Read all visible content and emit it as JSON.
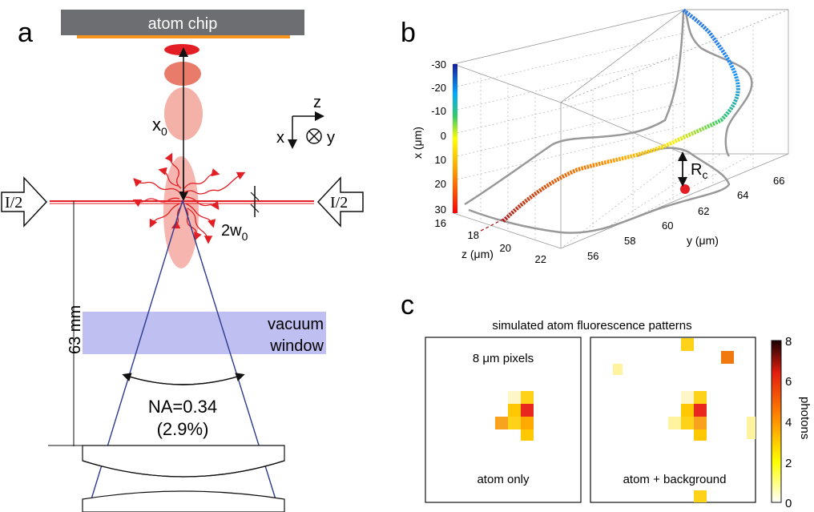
{
  "panel_a": {
    "letter": "a",
    "atom_chip": "atom chip",
    "x0": "x",
    "x0_sub": "0",
    "axis_z": "z",
    "axis_x": "x",
    "axis_y": "y",
    "beam_left": "I/2",
    "beam_right": "I/2",
    "waist": "2w",
    "waist_sub": "0",
    "distance": "63 mm",
    "window_line1": "vacuum",
    "window_line2": "window",
    "na": "NA=0.34",
    "na_pct": "(2.9%)",
    "colors": {
      "chip": "#6d6e71",
      "chip_coating": "#f7941d",
      "atom_cloud": "#f4a9a1",
      "laser": "#e31e24",
      "lens_ray": "#2b3990",
      "window": "#b8b8f0"
    }
  },
  "panel_b": {
    "letter": "b",
    "x_label": "x (μm)",
    "y_label": "y (μm)",
    "z_label": "z (μm)",
    "x_ticks": [
      "-30",
      "-20",
      "-10",
      "0",
      "10",
      "20",
      "30"
    ],
    "y_ticks": [
      "56",
      "58",
      "60",
      "62",
      "64",
      "66"
    ],
    "z_ticks": [
      "16",
      "18",
      "20",
      "22"
    ],
    "rc_label": "R",
    "rc_sub": "c"
  },
  "panel_c": {
    "letter": "c",
    "title": "simulated atom fluorescence patterns",
    "left_top": "8 μm pixels",
    "left_bottom": "atom only",
    "right_bottom": "atom + background",
    "colorbar_label": "photons",
    "colorbar_ticks": [
      "8",
      "6",
      "4",
      "2",
      "0"
    ]
  }
}
